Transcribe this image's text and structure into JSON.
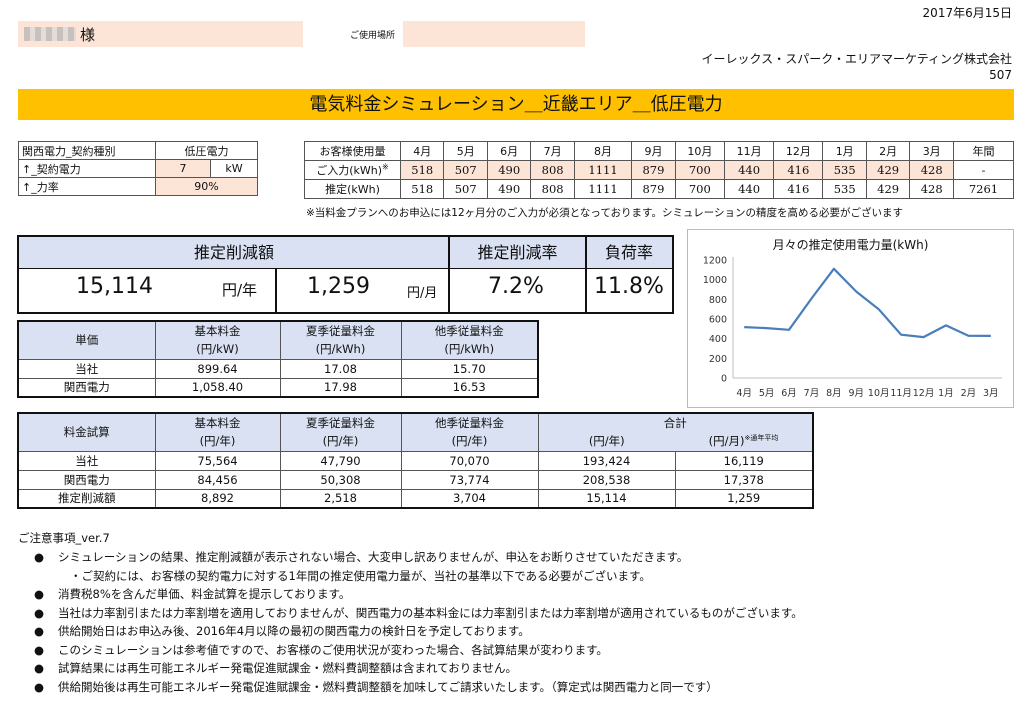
{
  "header": {
    "customer_suffix": "様",
    "place_label": "ご使用場所",
    "date": "2017年6月15日",
    "company": "イーレックス・スパーク・エリアマーケティング株式会社",
    "code": "507"
  },
  "title": "電気料金シミュレーション＿近畿エリア＿低圧電力",
  "contract": {
    "type_label": "関西電力_契約種別",
    "type_value": "低圧電力",
    "capacity_label": "↑_契約電力",
    "capacity_value": "7",
    "capacity_unit": "kW",
    "pf_label": "↑_力率",
    "pf_value": "90%"
  },
  "usage": {
    "header_label": "お客様使用量",
    "months": [
      "4月",
      "5月",
      "6月",
      "7月",
      "8月",
      "9月",
      "10月",
      "11月",
      "12月",
      "1月",
      "2月",
      "3月"
    ],
    "annual_label": "年間",
    "input_label": "ご入力(kWh)",
    "input_mark": "※",
    "input_values": [
      "518",
      "507",
      "490",
      "808",
      "1111",
      "879",
      "700",
      "440",
      "416",
      "535",
      "429",
      "428"
    ],
    "input_annual": "-",
    "est_label": "推定(kWh)",
    "est_values": [
      "518",
      "507",
      "490",
      "808",
      "1111",
      "879",
      "700",
      "440",
      "416",
      "535",
      "429",
      "428"
    ],
    "est_annual": "7261",
    "note": "※当料金プランへのお申込には12ヶ月分のご入力が必須となっております。シミュレーションの精度を高める必要がございます"
  },
  "summary": {
    "reduction_header": "推定削減額",
    "rate_header": "推定削減率",
    "load_header": "負荷率",
    "annual_value": "15,114",
    "annual_unit": "円/年",
    "monthly_value": "1,259",
    "monthly_unit": "円/月",
    "rate_value": "7.2%",
    "load_value": "11.8%"
  },
  "chart_data": {
    "type": "line",
    "title": "月々の推定使用電力量(kWh)",
    "categories": [
      "4月",
      "5月",
      "6月",
      "7月",
      "8月",
      "9月",
      "10月",
      "11月",
      "12月",
      "1月",
      "2月",
      "3月"
    ],
    "values": [
      518,
      507,
      490,
      808,
      1111,
      879,
      700,
      440,
      416,
      535,
      429,
      428
    ],
    "yticks": [
      "0",
      "200",
      "400",
      "600",
      "800",
      "1000",
      "1200"
    ],
    "ylim": [
      0,
      1200
    ],
    "line_color": "#4a7ebb",
    "grid": false
  },
  "unit_table": {
    "label": "単価",
    "col1": "基本料金",
    "col1_unit": "(円/kW)",
    "col2": "夏季従量料金",
    "col2_unit": "(円/kWh)",
    "col3": "他季従量料金",
    "col3_unit": "(円/kWh)",
    "rows": [
      {
        "name": "当社",
        "v1": "899.64",
        "v2": "17.08",
        "v3": "15.70"
      },
      {
        "name": "関西電力",
        "v1": "1,058.40",
        "v2": "17.98",
        "v3": "16.53"
      }
    ]
  },
  "fee_table": {
    "label": "料金試算",
    "col1": "基本料金",
    "col1_unit": "(円/年)",
    "col2": "夏季従量料金",
    "col2_unit": "(円/年)",
    "col3": "他季従量料金",
    "col3_unit": "(円/年)",
    "total": "合計",
    "total_year_unit": "(円/年)",
    "total_month_unit": "(円/月)",
    "avg_note": "※通年平均",
    "rows": [
      {
        "name": "当社",
        "v1": "75,564",
        "v2": "47,790",
        "v3": "70,070",
        "year": "193,424",
        "month": "16,119"
      },
      {
        "name": "関西電力",
        "v1": "84,456",
        "v2": "50,308",
        "v3": "73,774",
        "year": "208,538",
        "month": "17,378"
      },
      {
        "name": "推定削減額",
        "v1": "8,892",
        "v2": "2,518",
        "v3": "3,704",
        "year": "15,114",
        "month": "1,259"
      }
    ]
  },
  "notes": {
    "title": "ご注意事項_ver.7",
    "bullet": "●",
    "items": [
      "シミュレーションの結果、推定削減額が表示されない場合、大変申し訳ありませんが、申込をお断りさせていただきます。",
      "・ご契約には、お客様の契約電力に対する1年間の推定使用電力量が、当社の基準以下である必要がございます。",
      "消費税8%を含んだ単価、料金試算を提示しております。",
      "当社は力率割引または力率割増を適用しておりませんが、関西電力の基本料金には力率割引または力率割増が適用されているものがございます。",
      "供給開始日はお申込み後、2016年4月以降の最初の関西電力の検針日を予定しております。",
      "このシミュレーションは参考値ですので、お客様のご使用状況が変わった場合、各試算結果が変わります。",
      "試算結果には再生可能エネルギー発電促進賦課金・燃料費調整額は含まれておりません。",
      "供給開始後は再生可能エネルギー発電促進賦課金・燃料費調整額を加味してご請求いたします。（算定式は関西電力と同一です）"
    ]
  }
}
